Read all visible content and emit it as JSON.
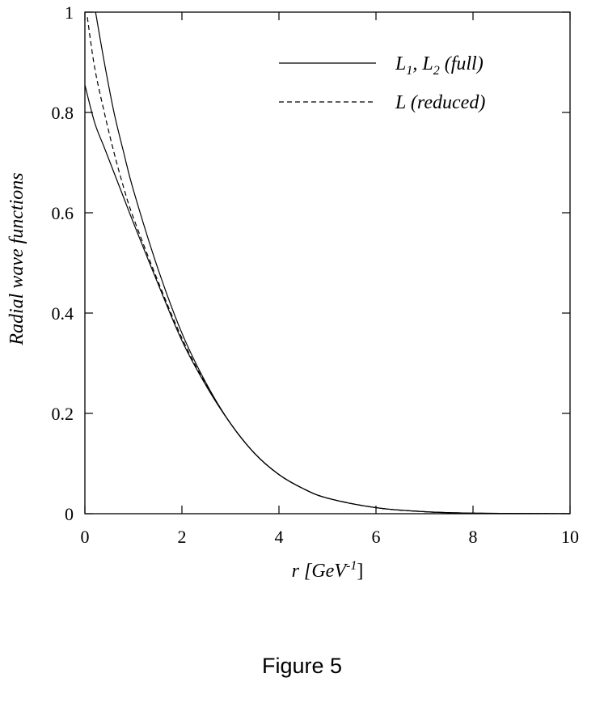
{
  "chart_data": {
    "type": "line",
    "xlabel_main": "r [GeV",
    "xlabel_sup": "-1",
    "xlabel_close": "]",
    "ylabel": "Radial wave functions",
    "xlim": [
      0,
      10
    ],
    "ylim": [
      0,
      1
    ],
    "xticks": [
      0,
      2,
      4,
      6,
      8,
      10
    ],
    "yticks": [
      0,
      0.2,
      0.4,
      0.6,
      0.8,
      1
    ],
    "xtick_labels": [
      "0",
      "2",
      "4",
      "6",
      "8",
      "10"
    ],
    "ytick_labels": [
      "0",
      "0.2",
      "0.4",
      "0.6",
      "0.8",
      "1"
    ],
    "grid": false,
    "legend_position": "top-right",
    "legend": {
      "full": {
        "L": "L",
        "sub1": "1",
        "sep": ", L",
        "sub2": "2",
        "rest": " (full)"
      },
      "reduced": {
        "text": "L (reduced)"
      }
    },
    "series": [
      {
        "key": "full_upper",
        "style": "solid",
        "x": [
          0.22,
          0.4,
          0.6,
          0.8,
          1.0,
          1.5,
          2.0,
          2.5,
          3.0,
          3.5,
          4.0,
          4.5,
          5.0,
          6.0,
          7.0,
          8.0,
          10.0
        ],
        "y": [
          1.0,
          0.9,
          0.8,
          0.72,
          0.645,
          0.49,
          0.36,
          0.26,
          0.18,
          0.12,
          0.078,
          0.05,
          0.031,
          0.012,
          0.004,
          0.001,
          0.0
        ]
      },
      {
        "key": "full_lower",
        "style": "solid",
        "x": [
          0.0,
          0.2,
          0.4,
          0.6,
          0.8,
          1.0,
          1.5,
          2.0,
          2.5,
          3.0,
          3.5,
          4.0,
          4.5,
          5.0,
          6.0,
          7.0,
          8.0,
          10.0
        ],
        "y": [
          0.855,
          0.78,
          0.73,
          0.68,
          0.63,
          0.58,
          0.46,
          0.345,
          0.255,
          0.18,
          0.12,
          0.078,
          0.05,
          0.031,
          0.012,
          0.004,
          0.001,
          0.0
        ]
      },
      {
        "key": "reduced",
        "style": "dashed",
        "x": [
          0.05,
          0.2,
          0.4,
          0.6,
          0.8,
          1.0,
          1.5,
          2.0,
          2.5,
          3.0,
          3.5,
          4.0,
          4.5,
          5.0,
          6.0,
          7.0,
          8.0,
          10.0
        ],
        "y": [
          0.99,
          0.89,
          0.8,
          0.72,
          0.65,
          0.59,
          0.465,
          0.35,
          0.257,
          0.18,
          0.12,
          0.078,
          0.05,
          0.031,
          0.012,
          0.004,
          0.001,
          0.0
        ]
      }
    ]
  },
  "caption": "Figure 5"
}
